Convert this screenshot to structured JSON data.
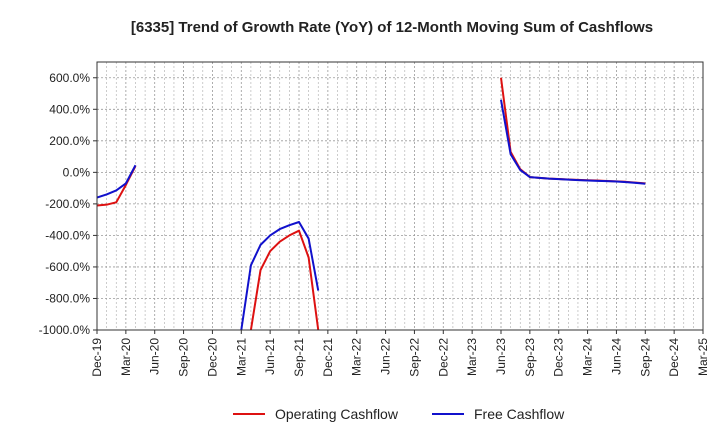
{
  "chart_data": {
    "type": "line",
    "title": "[6335]  Trend of Growth Rate (YoY) of 12-Month Moving Sum of Cashflows",
    "xlabel": "",
    "ylabel": "",
    "ylim": [
      -1000,
      700
    ],
    "grid": true,
    "legend_position": "bottom",
    "x_tick_labels": [
      "Dec-19",
      "Mar-20",
      "Jun-20",
      "Sep-20",
      "Dec-20",
      "Mar-21",
      "Jun-21",
      "Sep-21",
      "Dec-21",
      "Mar-22",
      "Jun-22",
      "Sep-22",
      "Dec-22",
      "Mar-23",
      "Jun-23",
      "Sep-23",
      "Dec-23",
      "Mar-24",
      "Jun-24",
      "Sep-24",
      "Dec-24",
      "Mar-25"
    ],
    "y_ticks": [
      600,
      400,
      200,
      0,
      -200,
      -400,
      -600,
      -800,
      -1000
    ],
    "y_tick_labels": [
      "600.0%",
      "400.0%",
      "200.0%",
      "0.0%",
      "-200.0%",
      "-400.0%",
      "-600.0%",
      "-800.0%",
      "-1000.0%"
    ],
    "series": [
      {
        "name": "Operating Cashflow",
        "color": "#dd1111",
        "segments": [
          [
            [
              "Dec-19",
              -210
            ],
            [
              "Jan-20",
              -205
            ],
            [
              "Feb-20",
              -190
            ],
            [
              "Mar-20",
              -80
            ],
            [
              "Apr-20",
              40
            ]
          ],
          [
            [
              "Apr-21",
              -1000
            ],
            [
              "May-21",
              -620
            ],
            [
              "Jun-21",
              -500
            ],
            [
              "Jul-21",
              -440
            ],
            [
              "Aug-21",
              -400
            ],
            [
              "Sep-21",
              -370
            ],
            [
              "Oct-21",
              -540
            ],
            [
              "Nov-21",
              -1000
            ]
          ],
          [
            [
              "Jun-23",
              600
            ],
            [
              "Jul-23",
              130
            ],
            [
              "Aug-23",
              20
            ],
            [
              "Sep-23",
              -30
            ],
            [
              "Oct-23",
              -35
            ],
            [
              "Nov-23",
              -40
            ],
            [
              "Dec-23",
              -42
            ],
            [
              "Jan-24",
              -45
            ],
            [
              "Feb-24",
              -48
            ],
            [
              "Mar-24",
              -50
            ],
            [
              "Apr-24",
              -52
            ],
            [
              "May-24",
              -55
            ],
            [
              "Jun-24",
              -57
            ],
            [
              "Jul-24",
              -60
            ],
            [
              "Aug-24",
              -65
            ],
            [
              "Sep-24",
              -70
            ]
          ]
        ]
      },
      {
        "name": "Free Cashflow",
        "color": "#1111cc",
        "segments": [
          [
            [
              "Dec-19",
              -160
            ],
            [
              "Jan-20",
              -140
            ],
            [
              "Feb-20",
              -115
            ],
            [
              "Mar-20",
              -70
            ],
            [
              "Apr-20",
              45
            ]
          ],
          [
            [
              "Mar-21",
              -1000
            ],
            [
              "Apr-21",
              -590
            ],
            [
              "May-21",
              -460
            ],
            [
              "Jun-21",
              -400
            ],
            [
              "Jul-21",
              -360
            ],
            [
              "Aug-21",
              -335
            ],
            [
              "Sep-21",
              -315
            ],
            [
              "Oct-21",
              -420
            ],
            [
              "Nov-21",
              -750
            ]
          ],
          [
            [
              "Jun-23",
              460
            ],
            [
              "Jul-23",
              115
            ],
            [
              "Aug-23",
              15
            ],
            [
              "Sep-23",
              -30
            ],
            [
              "Oct-23",
              -35
            ],
            [
              "Nov-23",
              -40
            ],
            [
              "Dec-23",
              -43
            ],
            [
              "Jan-24",
              -46
            ],
            [
              "Feb-24",
              -49
            ],
            [
              "Mar-24",
              -52
            ],
            [
              "Apr-24",
              -54
            ],
            [
              "May-24",
              -56
            ],
            [
              "Jun-24",
              -58
            ],
            [
              "Jul-24",
              -62
            ],
            [
              "Aug-24",
              -67
            ],
            [
              "Sep-24",
              -72
            ]
          ]
        ]
      }
    ]
  }
}
